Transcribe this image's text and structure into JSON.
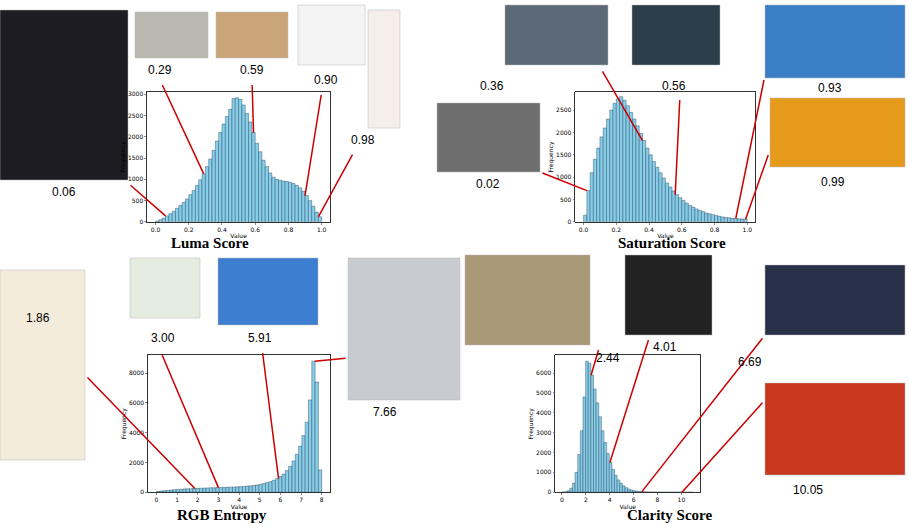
{
  "chart_data": [
    {
      "type": "histogram",
      "title": "Luma Score",
      "xlabel": "Value",
      "ylabel": "Frequency",
      "color": "#87ceeb",
      "bins": [
        0,
        0.02,
        0.04,
        0.06,
        0.08,
        0.1,
        0.12,
        0.14,
        0.16,
        0.18,
        0.2,
        0.22,
        0.24,
        0.26,
        0.28,
        0.3,
        0.32,
        0.34,
        0.36,
        0.38,
        0.4,
        0.42,
        0.44,
        0.46,
        0.48,
        0.5,
        0.52,
        0.54,
        0.56,
        0.58,
        0.6,
        0.62,
        0.64,
        0.66,
        0.68,
        0.7,
        0.72,
        0.74,
        0.76,
        0.78,
        0.8,
        0.82,
        0.84,
        0.86,
        0.88,
        0.9,
        0.92,
        0.94,
        0.96,
        0.98,
        1.0
      ],
      "values": [
        20,
        50,
        90,
        140,
        190,
        250,
        320,
        390,
        460,
        540,
        640,
        740,
        860,
        990,
        1130,
        1300,
        1480,
        1680,
        1900,
        2100,
        2300,
        2480,
        2650,
        2900,
        2920,
        2880,
        2750,
        2550,
        2350,
        2100,
        1850,
        1650,
        1450,
        1300,
        1150,
        1050,
        1000,
        980,
        960,
        950,
        930,
        900,
        860,
        800,
        720,
        620,
        500,
        370,
        230,
        120
      ],
      "xlim": [
        -0.05,
        1.05
      ],
      "ylim": [
        0,
        3050
      ],
      "xticks": [
        {
          "value": 0,
          "label": "0.0"
        },
        {
          "value": 0.2,
          "label": "0.2"
        },
        {
          "value": 0.4,
          "label": "0.4"
        },
        {
          "value": 0.6,
          "label": "0.6"
        },
        {
          "value": 0.8,
          "label": "0.8"
        },
        {
          "value": 1,
          "label": "1.0"
        }
      ],
      "yticks": [
        0,
        500,
        1000,
        1500,
        2000,
        2500,
        3000
      ],
      "annotations": [
        {
          "text": "0.06",
          "x": 0.06
        },
        {
          "text": "0.29",
          "x": 0.29
        },
        {
          "text": "0.59",
          "x": 0.59
        },
        {
          "text": "0.90",
          "x": 0.9
        },
        {
          "text": "0.98",
          "x": 0.98
        }
      ]
    },
    {
      "type": "histogram",
      "title": "Saturation Score",
      "xlabel": "Value",
      "ylabel": "Frequency",
      "color": "#87ceeb",
      "bins": [
        0,
        0.02,
        0.04,
        0.06,
        0.08,
        0.1,
        0.12,
        0.14,
        0.16,
        0.18,
        0.2,
        0.22,
        0.24,
        0.26,
        0.28,
        0.3,
        0.32,
        0.34,
        0.36,
        0.38,
        0.4,
        0.42,
        0.44,
        0.46,
        0.48,
        0.5,
        0.52,
        0.54,
        0.56,
        0.58,
        0.6,
        0.62,
        0.64,
        0.66,
        0.68,
        0.7,
        0.72,
        0.74,
        0.76,
        0.78,
        0.8,
        0.82,
        0.84,
        0.86,
        0.88,
        0.9,
        0.92,
        0.94,
        0.96,
        0.98,
        1.0
      ],
      "values": [
        150,
        700,
        1100,
        1400,
        1650,
        1900,
        2100,
        2300,
        2500,
        2650,
        2750,
        2800,
        2720,
        2600,
        2450,
        2300,
        2150,
        1980,
        1820,
        1650,
        1500,
        1350,
        1220,
        1100,
        980,
        870,
        780,
        690,
        610,
        540,
        480,
        420,
        370,
        330,
        290,
        260,
        230,
        200,
        180,
        160,
        140,
        125,
        110,
        100,
        90,
        80,
        75,
        70,
        65,
        60
      ],
      "xlim": [
        -0.05,
        1.05
      ],
      "ylim": [
        0,
        2900
      ],
      "xticks": [
        {
          "value": 0,
          "label": "0.0"
        },
        {
          "value": 0.2,
          "label": "0.2"
        },
        {
          "value": 0.4,
          "label": "0.4"
        },
        {
          "value": 0.6,
          "label": "0.6"
        },
        {
          "value": 0.8,
          "label": "0.8"
        },
        {
          "value": 1,
          "label": "1.0"
        }
      ],
      "yticks": [
        0,
        500,
        1000,
        1500,
        2000,
        2500
      ],
      "annotations": [
        {
          "text": "0.36",
          "x": 0.36
        },
        {
          "text": "0.56",
          "x": 0.56
        },
        {
          "text": "0.02",
          "x": 0.02
        },
        {
          "text": "0.93",
          "x": 0.93
        },
        {
          "text": "0.99",
          "x": 0.99
        }
      ]
    },
    {
      "type": "histogram",
      "title": "RGB Entropy",
      "xlabel": "Value",
      "ylabel": "Frequency",
      "color": "#87ceeb",
      "bins": [
        0,
        0.16,
        0.32,
        0.48,
        0.64,
        0.8,
        0.96,
        1.12,
        1.28,
        1.44,
        1.6,
        1.76,
        1.92,
        2.08,
        2.24,
        2.4,
        2.56,
        2.72,
        2.88,
        3.04,
        3.2,
        3.36,
        3.52,
        3.68,
        3.84,
        4.0,
        4.16,
        4.32,
        4.48,
        4.64,
        4.8,
        4.96,
        5.12,
        5.28,
        5.44,
        5.6,
        5.76,
        5.92,
        6.08,
        6.24,
        6.4,
        6.56,
        6.72,
        6.88,
        7.04,
        7.2,
        7.36,
        7.52,
        7.68,
        7.84,
        8.0
      ],
      "values": [
        50,
        80,
        100,
        120,
        150,
        170,
        190,
        200,
        220,
        230,
        240,
        250,
        260,
        270,
        280,
        290,
        300,
        300,
        310,
        320,
        330,
        330,
        340,
        350,
        360,
        370,
        390,
        410,
        430,
        460,
        490,
        530,
        580,
        640,
        710,
        800,
        910,
        1050,
        1220,
        1450,
        1750,
        2100,
        2550,
        3100,
        3800,
        4700,
        6200,
        8800,
        7400,
        1500
      ],
      "xlim": [
        -0.4,
        8.4
      ],
      "ylim": [
        0,
        9200
      ],
      "xticks": [
        0,
        1,
        2,
        3,
        4,
        5,
        6,
        7,
        8
      ],
      "yticks": [
        0,
        2000,
        4000,
        6000,
        8000
      ],
      "annotations": [
        {
          "text": "1.86",
          "x": 1.86
        },
        {
          "text": "3.00",
          "x": 3.0
        },
        {
          "text": "5.91",
          "x": 5.91
        },
        {
          "text": "7.66",
          "x": 7.66
        }
      ]
    },
    {
      "type": "histogram",
      "title": "Clarity Score",
      "xlabel": "Value",
      "ylabel": "Frequency",
      "color": "#87ceeb",
      "bins": [
        0,
        0.22,
        0.44,
        0.66,
        0.88,
        1.1,
        1.32,
        1.54,
        1.76,
        1.98,
        2.2,
        2.42,
        2.64,
        2.86,
        3.08,
        3.3,
        3.52,
        3.74,
        3.96,
        4.18,
        4.4,
        4.62,
        4.84,
        5.06,
        5.28,
        5.5,
        5.72,
        5.94,
        6.16,
        6.38,
        6.6,
        6.82,
        7.04,
        7.26,
        7.48,
        7.7,
        7.92,
        8.14,
        8.36,
        8.58,
        8.8,
        9.02,
        9.24,
        9.46,
        9.68,
        9.9,
        10.12,
        10.34,
        10.56,
        10.78,
        11.0
      ],
      "values": [
        5,
        20,
        80,
        200,
        450,
        1000,
        1900,
        3100,
        4800,
        6600,
        6500,
        5900,
        5200,
        4500,
        3800,
        3100,
        2500,
        1950,
        1500,
        1150,
        850,
        620,
        450,
        320,
        230,
        160,
        110,
        80,
        55,
        40,
        28,
        20,
        14,
        10,
        8,
        6,
        5,
        4,
        3,
        3,
        2,
        2,
        2,
        1,
        1,
        1,
        1,
        0,
        0,
        0
      ],
      "xlim": [
        -0.55,
        11.55
      ],
      "ylim": [
        0,
        6900
      ],
      "xticks": [
        0,
        2,
        4,
        6,
        8,
        10
      ],
      "yticks": [
        0,
        1000,
        2000,
        3000,
        4000,
        5000,
        6000
      ],
      "annotations": [
        {
          "text": "2.44",
          "x": 2.44
        },
        {
          "text": "4.01",
          "x": 4.01
        },
        {
          "text": "6.69",
          "x": 6.69
        },
        {
          "text": "10.05",
          "x": 10.05
        }
      ]
    }
  ]
}
